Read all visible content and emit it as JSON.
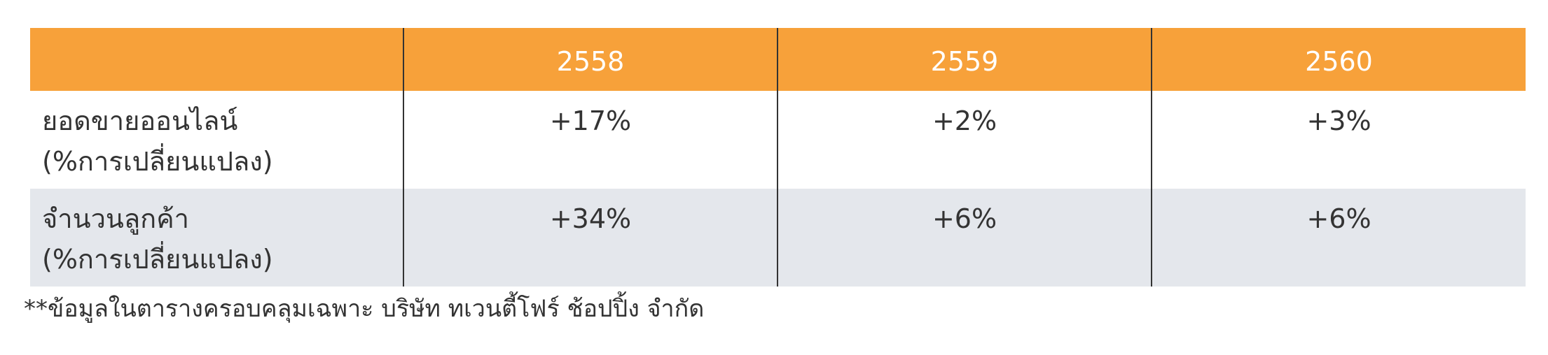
{
  "table": {
    "columns": [
      "",
      "2558",
      "2559",
      "2560"
    ],
    "rows": [
      {
        "label_line1": "ยอดขายออนไลน์",
        "label_line2": "(%การเปลี่ยนแปลง)",
        "values": [
          "+17%",
          "+2%",
          "+3%"
        ]
      },
      {
        "label_line1": "จำนวนลูกค้า",
        "label_line2": "(%การเปลี่ยนแปลง)",
        "values": [
          "+34%",
          "+6%",
          "+6%"
        ]
      }
    ]
  },
  "footnote": "**ข้อมูลในตารางครอบคลุมเฉพาะ บริษัท ทเวนตี้โฟร์ ช้อปปิ้ง จำกัด",
  "colors": {
    "header_bg": "#f7a13a",
    "header_text": "#ffffff",
    "alt_row_bg": "#e4e7ec",
    "text": "#333333"
  }
}
